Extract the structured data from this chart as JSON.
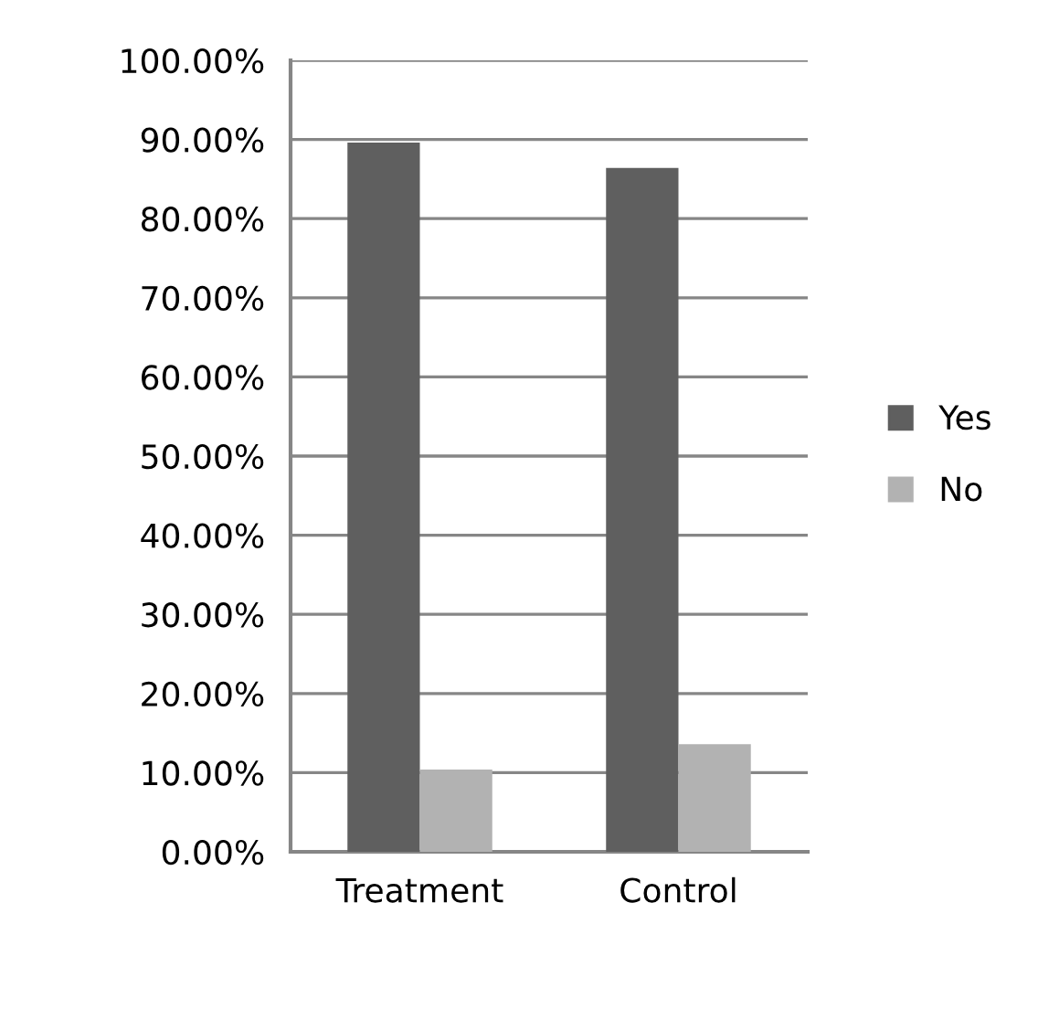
{
  "chart_data": {
    "type": "bar",
    "categories": [
      "Treatment",
      "Control"
    ],
    "series": [
      {
        "name": "Yes",
        "color": "#5f5f5f",
        "values": [
          89.6,
          86.4
        ]
      },
      {
        "name": "No",
        "color": "#b2b2b2",
        "values": [
          10.4,
          13.6
        ]
      }
    ],
    "ylim": [
      0,
      100
    ],
    "yticks": [
      {
        "value": 0,
        "label": "0.00%"
      },
      {
        "value": 10,
        "label": "10.00%"
      },
      {
        "value": 20,
        "label": "20.00%"
      },
      {
        "value": 30,
        "label": "30.00%"
      },
      {
        "value": 40,
        "label": "40.00%"
      },
      {
        "value": 50,
        "label": "50.00%"
      },
      {
        "value": 60,
        "label": "60.00%"
      },
      {
        "value": 70,
        "label": "70.00%"
      },
      {
        "value": 80,
        "label": "80.00%"
      },
      {
        "value": 90,
        "label": "90.00%"
      },
      {
        "value": 100,
        "label": "100.00%"
      }
    ],
    "grid": "y",
    "legend": "right"
  }
}
